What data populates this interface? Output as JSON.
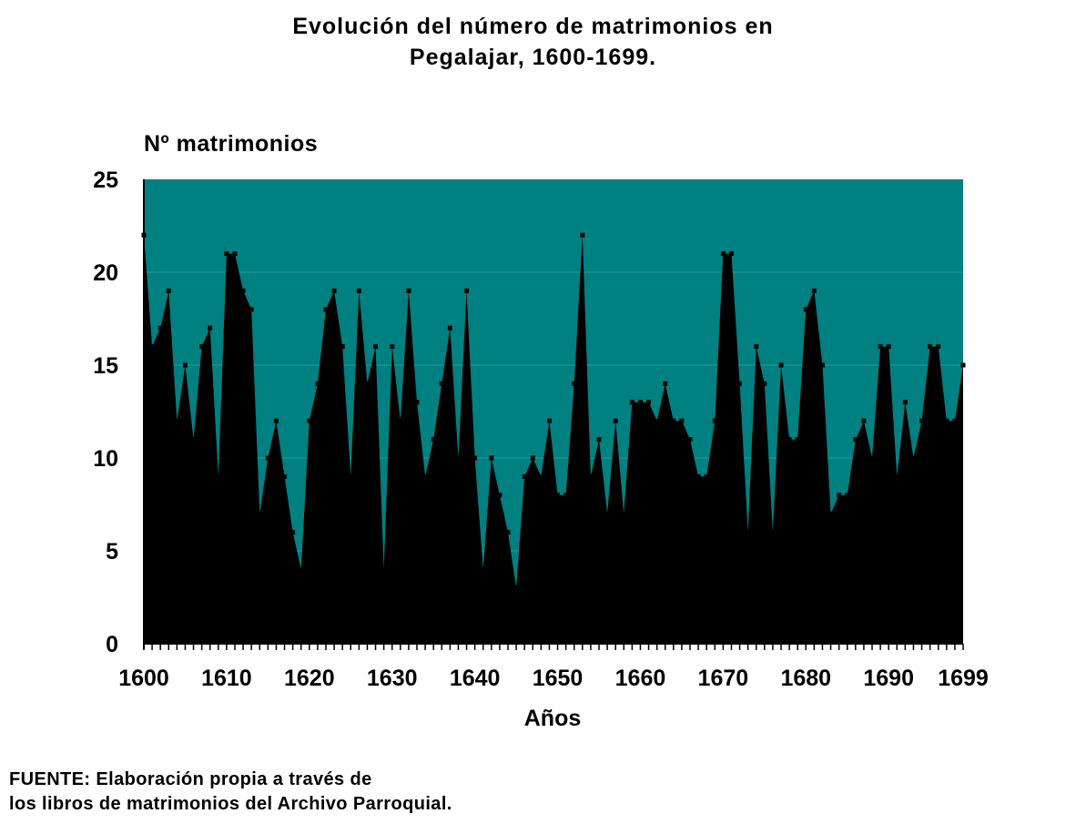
{
  "chart_data": {
    "type": "area",
    "title_line1": "Evolución del número de matrimonios en",
    "title_line2": "Pegalajar, 1600-1699.",
    "ylabel": "Nº matrimonios",
    "xlabel": "Años",
    "ylim": [
      0,
      25
    ],
    "xlim": [
      1600,
      1699
    ],
    "yticks": [
      "0",
      "5",
      "10",
      "15",
      "20",
      "25"
    ],
    "xticks": [
      "1600",
      "1610",
      "1620",
      "1630",
      "1640",
      "1650",
      "1660",
      "1670",
      "1680",
      "1690",
      "1699"
    ],
    "grid": true,
    "background_color": "#008080",
    "area_color": "#000000",
    "series": [
      {
        "x": [
          1600,
          1601,
          1602,
          1603,
          1604,
          1605,
          1606,
          1607,
          1608,
          1609,
          1610,
          1611,
          1612,
          1613,
          1614,
          1615,
          1616,
          1617,
          1618,
          1619,
          1620,
          1621,
          1622,
          1623,
          1624,
          1625,
          1626,
          1627,
          1628,
          1629,
          1630,
          1631,
          1632,
          1633,
          1634,
          1635,
          1636,
          1637,
          1638,
          1639,
          1640,
          1641,
          1642,
          1643,
          1644,
          1645,
          1646,
          1647,
          1648,
          1649,
          1650,
          1651,
          1652,
          1653,
          1654,
          1655,
          1656,
          1657,
          1658,
          1659,
          1660,
          1661,
          1662,
          1663,
          1664,
          1665,
          1666,
          1667,
          1668,
          1669,
          1670,
          1671,
          1672,
          1673,
          1674,
          1675,
          1676,
          1677,
          1678,
          1679,
          1680,
          1681,
          1682,
          1683,
          1684,
          1685,
          1686,
          1687,
          1688,
          1689,
          1690,
          1691,
          1692,
          1693,
          1694,
          1695,
          1696,
          1697,
          1698,
          1699
        ],
        "values": [
          22,
          16,
          17,
          19,
          12,
          15,
          11,
          16,
          17,
          9,
          21,
          21,
          19,
          18,
          7,
          10,
          12,
          9,
          6,
          4,
          12,
          14,
          18,
          19,
          16,
          9,
          19,
          14,
          16,
          4,
          16,
          12,
          19,
          13,
          9,
          11,
          14,
          17,
          10,
          19,
          10,
          4,
          10,
          8,
          6,
          3,
          9,
          10,
          9,
          12,
          8,
          8,
          14,
          22,
          9,
          11,
          7,
          12,
          7,
          13,
          13,
          13,
          12,
          14,
          12,
          12,
          11,
          9,
          9,
          12,
          21,
          21,
          14,
          6,
          16,
          14,
          6,
          15,
          11,
          11,
          18,
          19,
          15,
          7,
          8,
          8,
          11,
          12,
          10,
          16,
          16,
          9,
          13,
          10,
          12,
          16,
          16,
          12,
          12,
          15
        ]
      }
    ]
  },
  "source": {
    "line1": "FUENTE: Elaboración propia a través de",
    "line2": "los libros de matrimonios del Archivo Parroquial."
  }
}
